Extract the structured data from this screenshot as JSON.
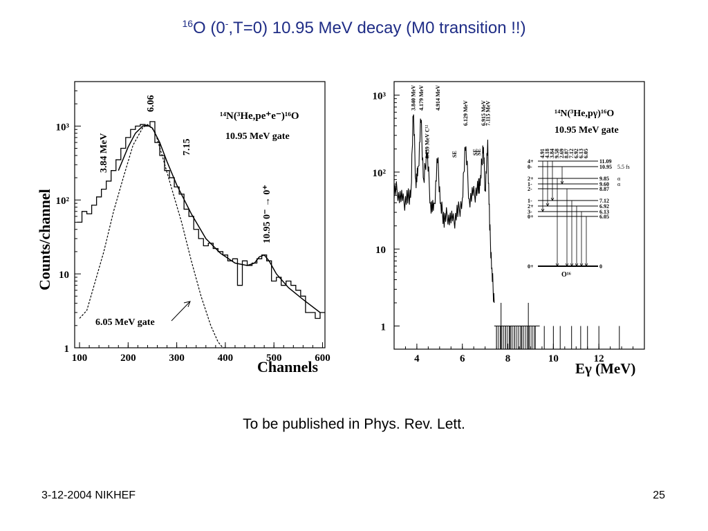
{
  "slide": {
    "title_iso": "16",
    "title_main": "O (0",
    "title_sup2": "-",
    "title_rest": ",T=0) 10.95 MeV decay (M0 transition !!)",
    "caption": "To be published in Phys. Rev. Lett.",
    "footer_left": "3-12-2004 NIKHEF",
    "page_number": "25"
  },
  "chart_data": [
    {
      "type": "line",
      "log_y": true,
      "ylabel": "Counts/channel",
      "xlabel": "Channels",
      "xlim": [
        90,
        605
      ],
      "ylim": [
        1,
        4000
      ],
      "x_ticks": [
        "100",
        "200",
        "300",
        "400",
        "500",
        "600"
      ],
      "y_ticks": [
        "1",
        "10",
        "10²",
        "10³"
      ],
      "reaction": "¹⁴N(³He,pe⁺e⁻)¹⁶O",
      "gate": "10.95 MeV gate",
      "annotations": [
        "3.84 MeV",
        "6.06",
        "7.15",
        "10.95 0⁻ → 0⁺",
        "6.05 MeV gate"
      ],
      "series": [
        {
          "style": "histogram",
          "x": [
            100,
            110,
            120,
            130,
            140,
            150,
            160,
            170,
            180,
            190,
            200,
            210,
            220,
            230,
            240,
            250,
            260,
            270,
            280,
            290,
            300,
            310,
            320,
            330,
            340,
            350,
            360,
            370,
            380,
            390,
            400,
            410,
            420,
            430,
            440,
            450,
            460,
            470,
            480,
            490,
            500,
            510,
            520,
            530,
            540,
            550,
            560,
            570,
            580,
            590,
            600
          ],
          "values": [
            50,
            70,
            65,
            85,
            110,
            140,
            180,
            250,
            350,
            500,
            700,
            900,
            1000,
            1050,
            1000,
            1150,
            600,
            400,
            250,
            200,
            150,
            120,
            75,
            60,
            40,
            30,
            24,
            26,
            22,
            20,
            18,
            15,
            16,
            7,
            15,
            13,
            14,
            16,
            18,
            15,
            8,
            9,
            7,
            8,
            7,
            6,
            5,
            3,
            3,
            2.5,
            3
          ]
        },
        {
          "style": "fit",
          "x": [
            180,
            200,
            215,
            230,
            240,
            250,
            265,
            280,
            300,
            330,
            360,
            390,
            420,
            445,
            460,
            470,
            480,
            490,
            505,
            530,
            560,
            595
          ],
          "values": [
            250,
            520,
            800,
            1000,
            1030,
            940,
            600,
            330,
            160,
            65,
            30,
            19,
            14,
            13,
            14,
            17,
            18,
            15,
            10,
            6.5,
            4.5,
            3
          ]
        },
        {
          "style": "dashed",
          "x": [
            100,
            115,
            130,
            150,
            170,
            190,
            210,
            230,
            240,
            255,
            270,
            290,
            310,
            330,
            350,
            370,
            385,
            395,
            400
          ],
          "values": [
            2.5,
            3.2,
            7,
            20,
            70,
            200,
            550,
            950,
            1050,
            850,
            400,
            140,
            50,
            15,
            5,
            2,
            1.2,
            1,
            1
          ]
        }
      ]
    },
    {
      "type": "line",
      "log_y": true,
      "xlabel": "Eγ (MeV)",
      "xlim": [
        3,
        14
      ],
      "ylim": [
        0.5,
        1500
      ],
      "x_ticks": [
        "4",
        "6",
        "8",
        "10",
        "12"
      ],
      "y_ticks": [
        "1",
        "10",
        "10²",
        "10³"
      ],
      "reaction": "¹⁴N(³He,pγ)¹⁶O",
      "gate": "10.95 MeV gate",
      "peak_labels": [
        "3.840 MeV",
        "4.179 MeV",
        "4.439 MeV C¹²",
        "4.914 MeV",
        "SE",
        "6.129 MeV",
        "SE",
        "SE",
        "6.915 MeV",
        "7.115 MeV"
      ],
      "level_scheme": {
        "levels": [
          {
            "jp": "4+",
            "energy": "11.09"
          },
          {
            "jp": "0-",
            "energy": "10.95",
            "note": "5.5 fs"
          },
          {
            "jp": "2+",
            "energy": "9.85",
            "note": "α"
          },
          {
            "jp": "1-",
            "energy": "9.60",
            "note": "α"
          },
          {
            "jp": "2-",
            "energy": "8.87"
          },
          {
            "jp": "1-",
            "energy": "7.12"
          },
          {
            "jp": "2+",
            "energy": "6.92"
          },
          {
            "jp": "3-",
            "energy": "6.13"
          },
          {
            "jp": "0+",
            "energy": "6.05"
          },
          {
            "jp": "0+",
            "energy": "0"
          }
        ],
        "gamma_labels": [
          "4.91",
          "4.18",
          "3.84",
          "9.58",
          "2.69",
          "8.87",
          "7.12",
          "6.92",
          "6.13",
          "6.05"
        ],
        "nucleus": "O¹⁶"
      },
      "series": [
        {
          "style": "spectrum",
          "x": [
            3.0,
            3.2,
            3.4,
            3.6,
            3.75,
            3.84,
            3.95,
            4.05,
            4.18,
            4.3,
            4.44,
            4.6,
            4.75,
            4.91,
            5.05,
            5.2,
            5.4,
            5.6,
            5.8,
            6.0,
            6.13,
            6.3,
            6.5,
            6.7,
            6.8,
            6.915,
            7.0,
            7.115,
            7.2,
            7.3,
            7.4
          ],
          "values": [
            60,
            55,
            40,
            45,
            55,
            700,
            80,
            90,
            500,
            70,
            200,
            40,
            30,
            150,
            35,
            25,
            28,
            22,
            30,
            40,
            250,
            45,
            50,
            60,
            80,
            230,
            60,
            200,
            20,
            5,
            2
          ]
        },
        {
          "style": "sparse",
          "x": [
            7.5,
            7.7,
            7.9,
            8.1,
            8.3,
            8.6,
            8.9,
            9.2,
            9.6,
            10.0,
            10.3,
            10.8,
            11.2,
            11.5,
            12.0,
            12.9
          ],
          "values": [
            1,
            2,
            1,
            1,
            1,
            1,
            2,
            1,
            1,
            1,
            1,
            1,
            1,
            1,
            1,
            1
          ]
        }
      ]
    }
  ]
}
